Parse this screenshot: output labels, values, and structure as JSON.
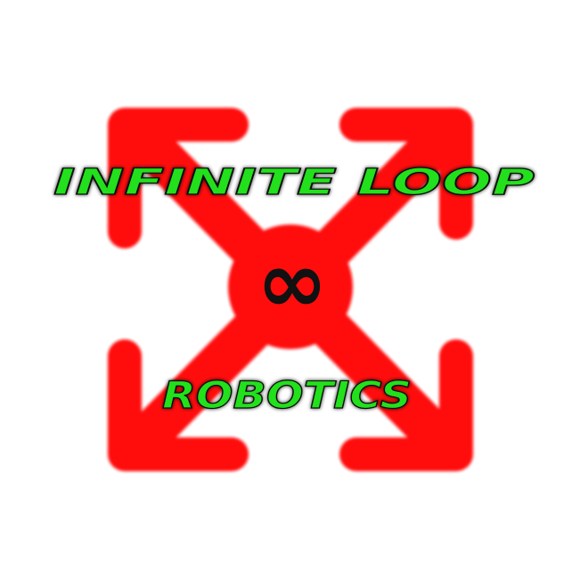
{
  "logo": {
    "name": "infinite-loop-robotics-logo",
    "title_line": "INFINITE LOOP",
    "subtitle_line": "ROBOTICS",
    "center_symbol": "∞",
    "colors": {
      "background": "#ffffff",
      "arrows": "#ff0d0d",
      "text_fill": "#22e01c",
      "text_outline": "#0a0a0a",
      "symbol": "#111111"
    },
    "icon_names": [
      "arrow-top-left-icon",
      "arrow-top-right-icon",
      "arrow-bottom-left-icon",
      "arrow-bottom-right-icon",
      "infinity-icon"
    ]
  }
}
